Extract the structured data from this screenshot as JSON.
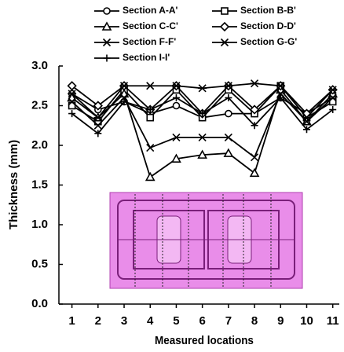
{
  "chart_data": {
    "type": "line",
    "x_label": "Measured locations",
    "y_label": "Thickness (mm)",
    "x": [
      1,
      2,
      3,
      4,
      5,
      6,
      7,
      8,
      9,
      10,
      11
    ],
    "xlim": [
      0.5,
      11.25
    ],
    "xticks": [
      1,
      2,
      3,
      4,
      5,
      6,
      7,
      8,
      9,
      10,
      11
    ],
    "ylim": [
      0,
      3
    ],
    "yticks": [
      {
        "value": 0,
        "label": "0.0"
      },
      0.5,
      {
        "value": 1,
        "label": "1.0"
      },
      1.5,
      {
        "value": 2,
        "label": "2.0"
      },
      2.5,
      {
        "value": 3,
        "label": "3.0"
      }
    ],
    "series": [
      {
        "name": "Section A-A'",
        "color": "#000000",
        "marker": "circle",
        "values": [
          2.65,
          2.45,
          2.55,
          2.4,
          2.5,
          2.35,
          2.4,
          2.4,
          2.6,
          2.4,
          2.6
        ]
      },
      {
        "name": "Section B-B'",
        "color": "#000000",
        "marker": "square",
        "values": [
          2.5,
          2.3,
          2.7,
          2.35,
          2.7,
          2.35,
          2.7,
          2.4,
          2.75,
          2.35,
          2.55
        ]
      },
      {
        "name": "Section C-C'",
        "color": "#000000",
        "marker": "triangle",
        "values": [
          2.6,
          2.35,
          2.65,
          1.6,
          1.83,
          1.88,
          1.9,
          1.65,
          2.7,
          2.3,
          2.65
        ]
      },
      {
        "name": "Section D-D'",
        "color": "#000000",
        "marker": "diamond",
        "values": [
          2.75,
          2.5,
          2.75,
          2.45,
          2.75,
          2.4,
          2.75,
          2.45,
          2.75,
          2.4,
          2.7
        ]
      },
      {
        "name": "Section F-F'",
        "color": "#000000",
        "marker": "x",
        "values": [
          2.55,
          2.25,
          2.6,
          1.97,
          2.1,
          2.1,
          2.1,
          1.85,
          2.65,
          2.3,
          2.6
        ]
      },
      {
        "name": "Section G-G'",
        "color": "#000000",
        "marker": "asterisk",
        "values": [
          2.65,
          2.35,
          2.75,
          2.75,
          2.75,
          2.72,
          2.75,
          2.78,
          2.75,
          2.35,
          2.7
        ]
      },
      {
        "name": "Section I-I'",
        "color": "#000000",
        "marker": "plus",
        "values": [
          2.4,
          2.15,
          2.55,
          2.45,
          2.6,
          2.4,
          2.6,
          2.25,
          2.6,
          2.2,
          2.45
        ]
      }
    ]
  }
}
